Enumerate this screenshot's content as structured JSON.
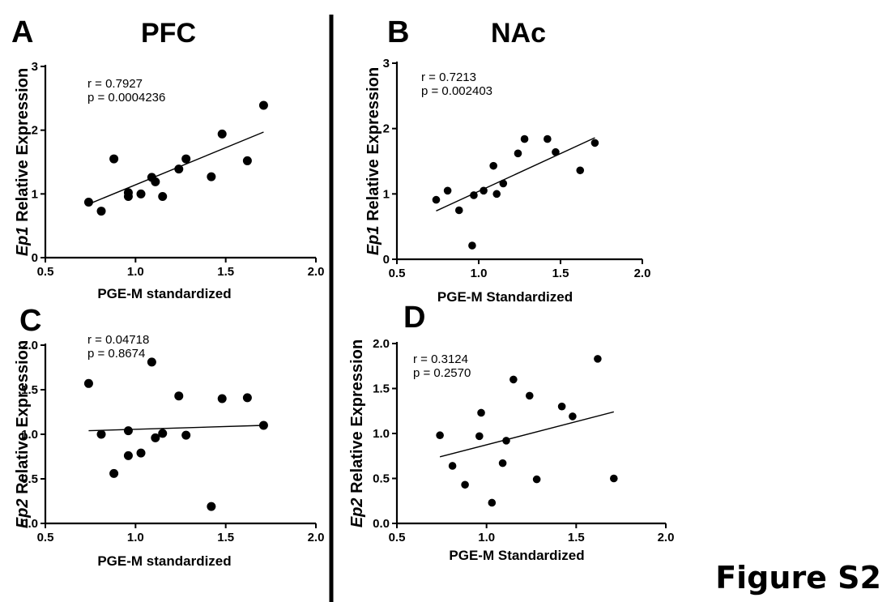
{
  "figure_label": "Figure S2",
  "region_labels": {
    "left": "PFC",
    "right": "NAc"
  },
  "chart_data": [
    {
      "id": "A",
      "panel_letter": "A",
      "type": "scatter",
      "xlabel": "PGE-M standardized",
      "ylabel_gene": "Ep1",
      "ylabel_rest": " Relative Expression",
      "xlim": [
        0.5,
        2.0
      ],
      "ylim": [
        0,
        3
      ],
      "xticks": [
        0.5,
        1.0,
        1.5,
        2.0
      ],
      "yticks": [
        0,
        1,
        2,
        3
      ],
      "xtick_labels": [
        "0.5",
        "1.0",
        "1.5",
        "2.0"
      ],
      "ytick_labels": [
        "0",
        "1",
        "2",
        "3"
      ],
      "stat_r": "r = 0.7927",
      "stat_p": "p = 0.0004236",
      "x": [
        0.74,
        0.81,
        0.88,
        0.96,
        0.96,
        1.03,
        1.09,
        1.11,
        1.15,
        1.24,
        1.28,
        1.42,
        1.48,
        1.62,
        1.71
      ],
      "y": [
        0.87,
        0.73,
        1.55,
        0.96,
        1.02,
        1.0,
        1.26,
        1.19,
        0.96,
        1.39,
        1.55,
        1.27,
        1.94,
        1.52,
        2.39
      ],
      "fit": {
        "x": [
          0.74,
          1.71
        ],
        "y": [
          0.84,
          1.97
        ]
      }
    },
    {
      "id": "B",
      "panel_letter": "B",
      "type": "scatter",
      "xlabel": "PGE-M Standardized",
      "ylabel_gene": "Ep1",
      "ylabel_rest": " Relative Expression",
      "xlim": [
        0.5,
        2.0
      ],
      "ylim": [
        0,
        3
      ],
      "xticks": [
        0.5,
        1.0,
        1.5,
        2.0
      ],
      "yticks": [
        0,
        1,
        2,
        3
      ],
      "xtick_labels": [
        "0.5",
        "1.0",
        "1.5",
        "2.0"
      ],
      "ytick_labels": [
        "0",
        "1",
        "2",
        "3"
      ],
      "stat_r": "r = 0.7213",
      "stat_p": "p = 0.002403",
      "x": [
        0.74,
        0.81,
        0.88,
        0.96,
        0.97,
        1.03,
        1.09,
        1.11,
        1.15,
        1.24,
        1.28,
        1.42,
        1.47,
        1.62,
        1.71
      ],
      "y": [
        0.91,
        1.05,
        0.75,
        0.21,
        0.98,
        1.05,
        1.43,
        1.0,
        1.16,
        1.62,
        1.84,
        1.84,
        1.64,
        1.36,
        1.78
      ],
      "fit": {
        "x": [
          0.74,
          1.71
        ],
        "y": [
          0.74,
          1.86
        ]
      }
    },
    {
      "id": "C",
      "panel_letter": "C",
      "type": "scatter",
      "xlabel": "PGE-M standardized",
      "ylabel_gene": "Ep2",
      "ylabel_rest": " Relative Expression",
      "xlim": [
        0.5,
        2.0
      ],
      "ylim": [
        0,
        2.0
      ],
      "xticks": [
        0.5,
        1.0,
        1.5,
        2.0
      ],
      "yticks": [
        0,
        0.5,
        1.0,
        1.5,
        2.0
      ],
      "xtick_labels": [
        "0.5",
        "1.0",
        "1.5",
        "2.0"
      ],
      "ytick_labels": [
        "0.0",
        "0.5",
        "1.0",
        "1.5",
        "2.0"
      ],
      "stat_r": "r = 0.04718",
      "stat_p": "p = 0.8674",
      "x": [
        0.74,
        0.81,
        0.88,
        0.96,
        0.96,
        1.03,
        1.09,
        1.11,
        1.15,
        1.24,
        1.28,
        1.42,
        1.48,
        1.62,
        1.71
      ],
      "y": [
        1.57,
        1.0,
        0.56,
        1.04,
        0.76,
        0.79,
        1.81,
        0.96,
        1.01,
        1.43,
        0.99,
        0.19,
        1.4,
        1.41,
        1.1
      ],
      "fit": {
        "x": [
          0.74,
          1.71
        ],
        "y": [
          1.04,
          1.1
        ]
      }
    },
    {
      "id": "D",
      "panel_letter": "D",
      "type": "scatter",
      "xlabel": "PGE-M Standardized",
      "ylabel_gene": "Ep2",
      "ylabel_rest": " Relative Expression",
      "xlim": [
        0.5,
        2.0
      ],
      "ylim": [
        0,
        2.0
      ],
      "xticks": [
        0.5,
        1.0,
        1.5,
        2.0
      ],
      "yticks": [
        0,
        0.5,
        1.0,
        1.5,
        2.0
      ],
      "xtick_labels": [
        "0.5",
        "1.0",
        "1.5",
        "2.0"
      ],
      "ytick_labels": [
        "0.0",
        "0.5",
        "1.0",
        "1.5",
        "2.0"
      ],
      "stat_r": "r = 0.3124",
      "stat_p": "p = 0.2570",
      "x": [
        0.74,
        0.81,
        0.88,
        0.96,
        0.97,
        1.03,
        1.09,
        1.11,
        1.15,
        1.24,
        1.28,
        1.42,
        1.48,
        1.62,
        1.71
      ],
      "y": [
        0.98,
        0.64,
        0.43,
        0.97,
        1.23,
        0.23,
        0.67,
        0.92,
        1.6,
        1.42,
        0.49,
        1.3,
        1.19,
        1.83,
        0.5
      ],
      "fit": {
        "x": [
          0.74,
          1.71
        ],
        "y": [
          0.74,
          1.24
        ]
      }
    }
  ]
}
